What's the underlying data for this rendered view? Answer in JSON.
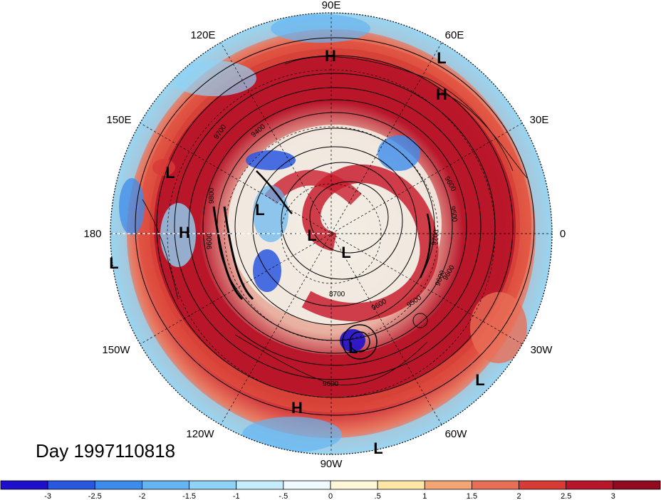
{
  "title": "Day 1997110818",
  "longitude_labels": [
    "90E",
    "60E",
    "30E",
    "0",
    "30W",
    "60W",
    "90W",
    "120W",
    "150W",
    "180",
    "150E",
    "120E"
  ],
  "pressure_centers": [
    "H",
    "L",
    "H",
    "L",
    "L",
    "H",
    "L",
    "L",
    "L",
    "L",
    "L",
    "H",
    "L"
  ],
  "contour_labels": [
    "9700",
    "9400",
    "9800",
    "9600",
    "9600",
    "9500",
    "9600",
    "9700",
    "9600",
    "8700",
    "9500",
    "9600",
    "9600"
  ],
  "colorbar": {
    "ticks": [
      "-3",
      "-2.5",
      "-2",
      "-1.5",
      "-1",
      "-.5",
      "0",
      ".5",
      "1",
      "1.5",
      "2",
      "2.5",
      "3"
    ],
    "colors": [
      "#1e0fcc",
      "#2a57e0",
      "#3c8cec",
      "#64b5f2",
      "#8ed3f6",
      "#c4ecfa",
      "#eefaff",
      "#fff7d8",
      "#fde6a6",
      "#f3a576",
      "#e86e56",
      "#d83a36",
      "#b8162a",
      "#900a20"
    ]
  },
  "colors": {
    "map_border": "#000000",
    "background": "#ffffff",
    "graticule": "#000000"
  }
}
